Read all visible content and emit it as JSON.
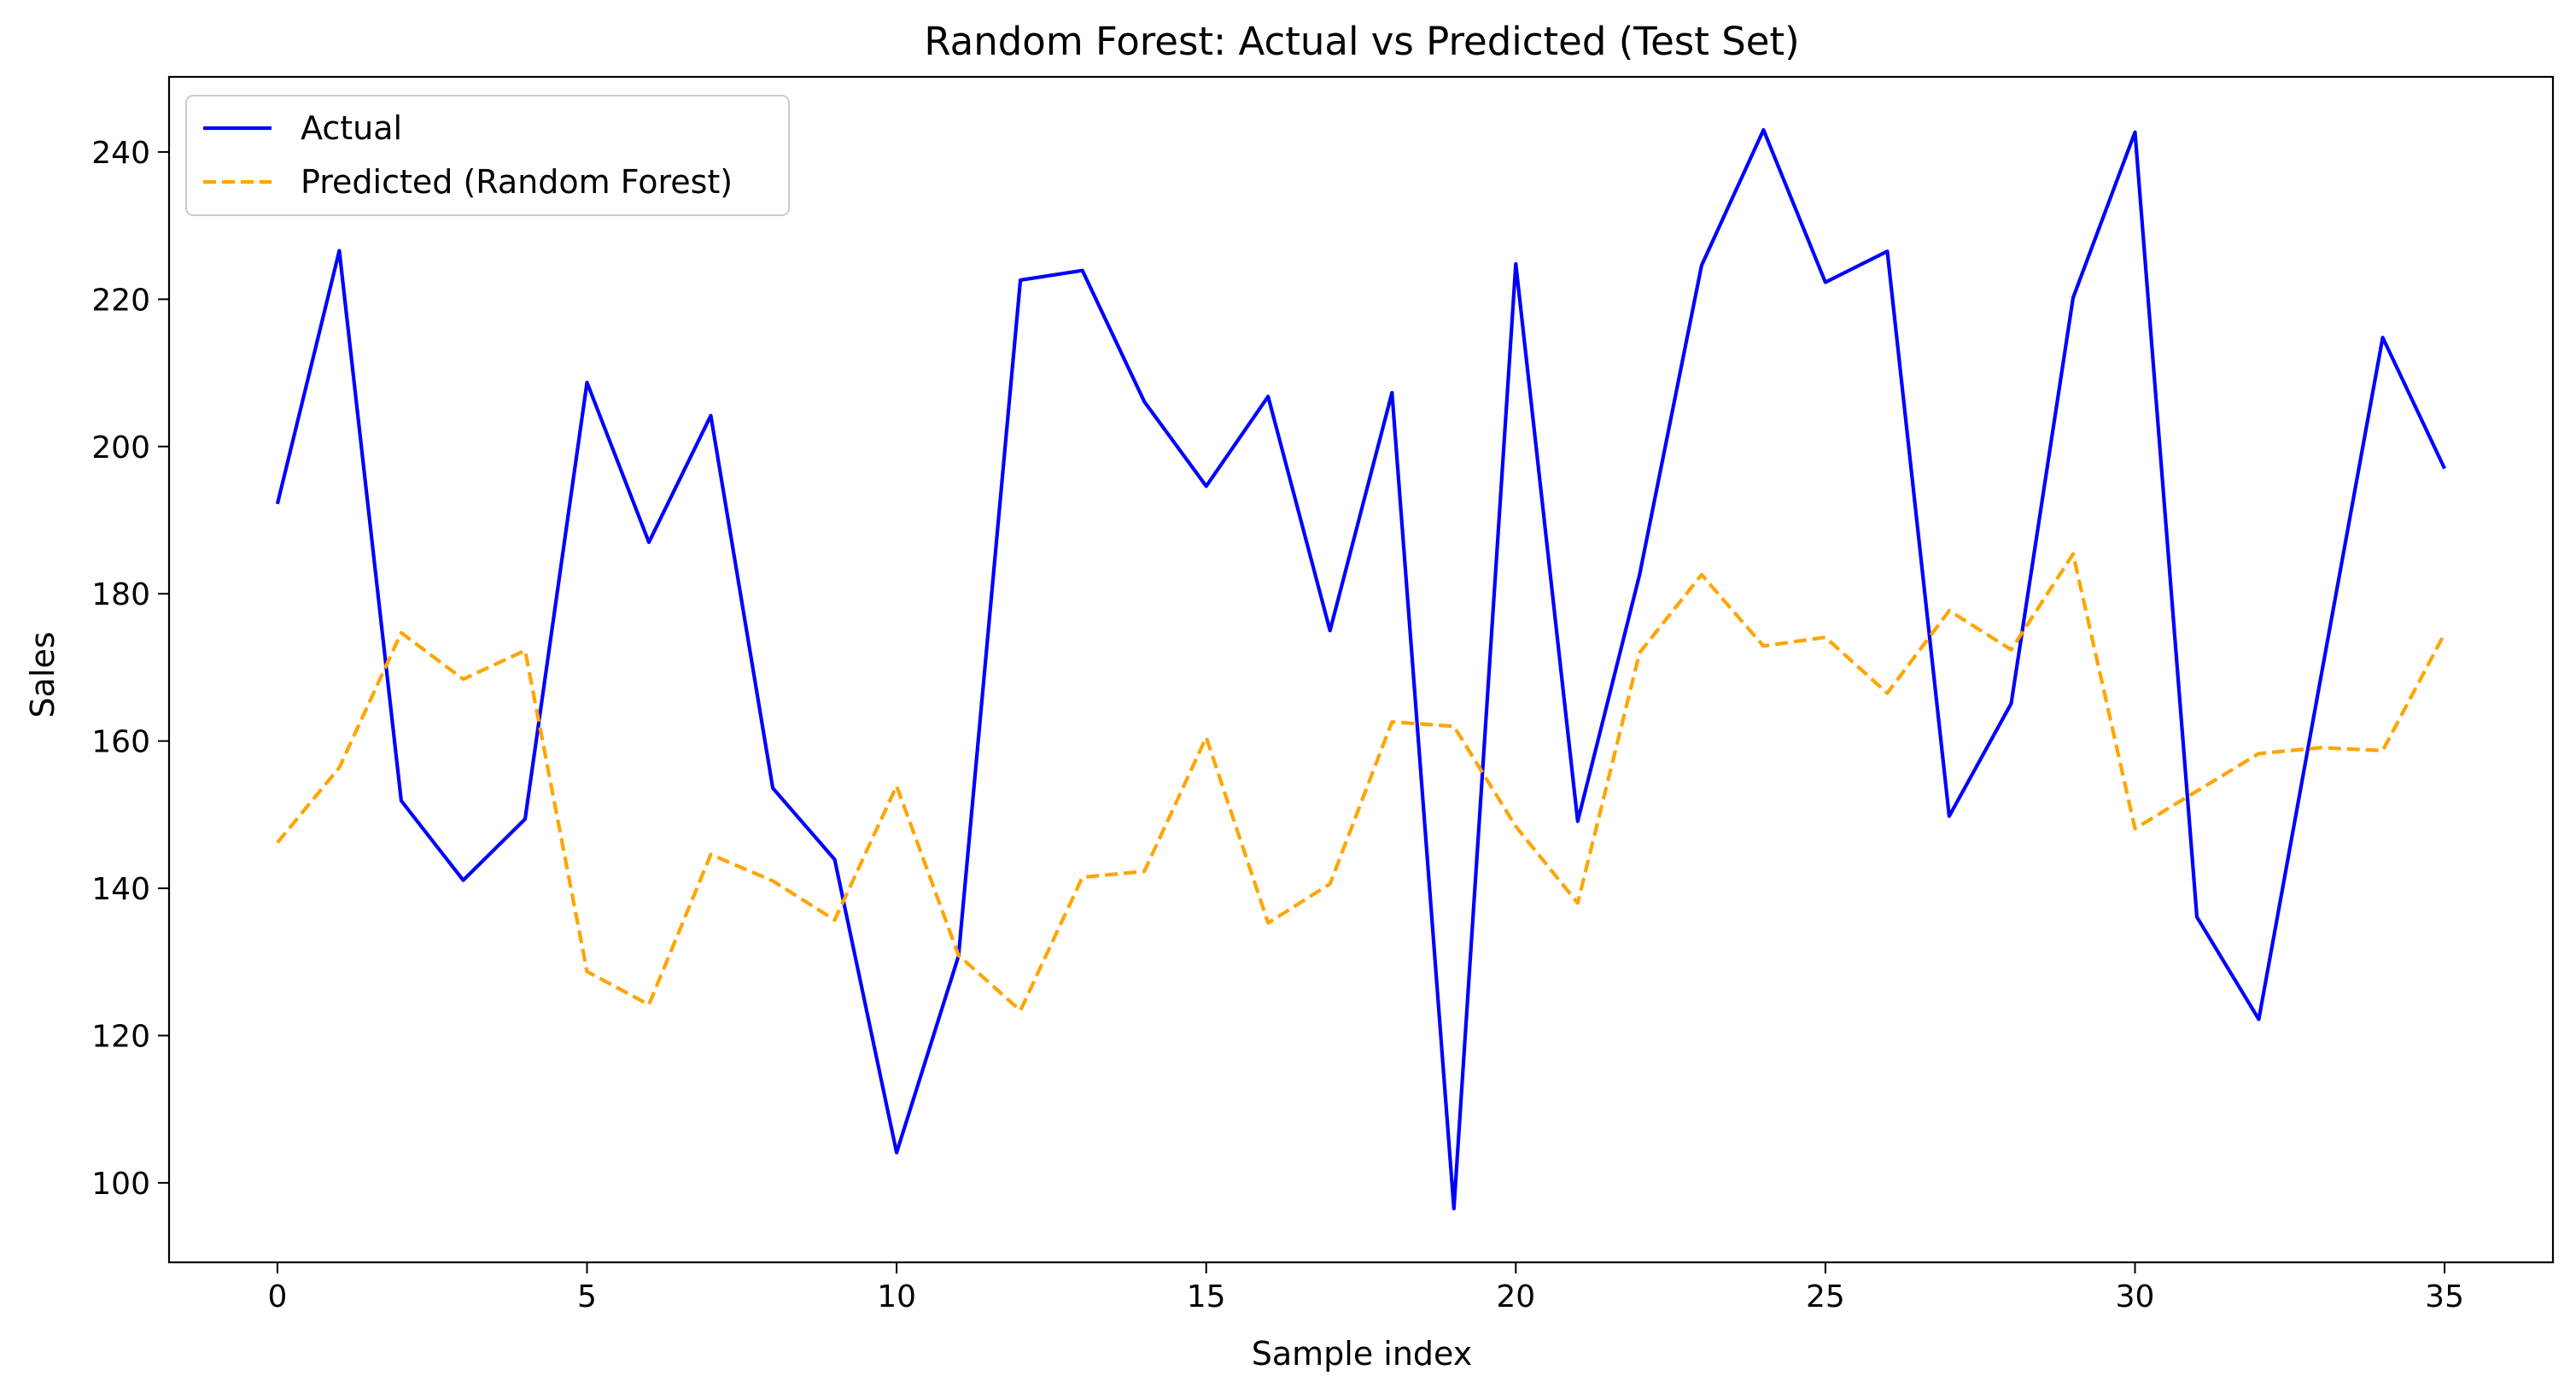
{
  "chart_data": {
    "type": "line",
    "title": "Random Forest: Actual vs Predicted (Test Set)",
    "xlabel": "Sample index",
    "ylabel": "Sales",
    "xlim": [
      -1.75,
      36.75
    ],
    "ylim": [
      89.2,
      250.2
    ],
    "xticks": [
      0,
      5,
      10,
      15,
      20,
      25,
      30,
      35
    ],
    "yticks": [
      100,
      120,
      140,
      160,
      180,
      200,
      220,
      240
    ],
    "grid": false,
    "legend_position": "upper-left",
    "x": [
      0,
      1,
      2,
      3,
      4,
      5,
      6,
      7,
      8,
      9,
      10,
      11,
      12,
      13,
      14,
      15,
      16,
      17,
      18,
      19,
      20,
      21,
      22,
      23,
      24,
      25,
      26,
      27,
      28,
      29,
      30,
      31,
      32,
      33,
      34,
      35
    ],
    "series": [
      {
        "name": "Actual",
        "color": "#0000ff",
        "style": "solid",
        "values": [
          192.2,
          226.6,
          151.9,
          141.1,
          149.4,
          208.7,
          187.0,
          204.2,
          153.6,
          143.9,
          104.1,
          130.8,
          222.6,
          223.9,
          206.1,
          194.6,
          206.8,
          175.0,
          207.3,
          96.5,
          224.8,
          149.1,
          182.6,
          224.6,
          243.0,
          222.3,
          226.5,
          149.8,
          165.1,
          220.2,
          242.7,
          136.1,
          122.2,
          168.6,
          214.8,
          197.0
        ]
      },
      {
        "name": "Predicted (Random Forest)",
        "color": "#ffa500",
        "style": "dashed",
        "values": [
          146.2,
          156.4,
          174.7,
          168.4,
          172.3,
          128.7,
          124.2,
          144.6,
          141.0,
          135.7,
          153.9,
          130.9,
          123.4,
          141.5,
          142.3,
          160.5,
          135.3,
          140.6,
          162.6,
          162.0,
          148.4,
          138.0,
          172.0,
          182.6,
          172.9,
          174.1,
          166.5,
          177.7,
          172.4,
          185.4,
          148.1,
          153.2,
          158.3,
          159.1,
          158.7,
          174.6
        ]
      }
    ]
  }
}
